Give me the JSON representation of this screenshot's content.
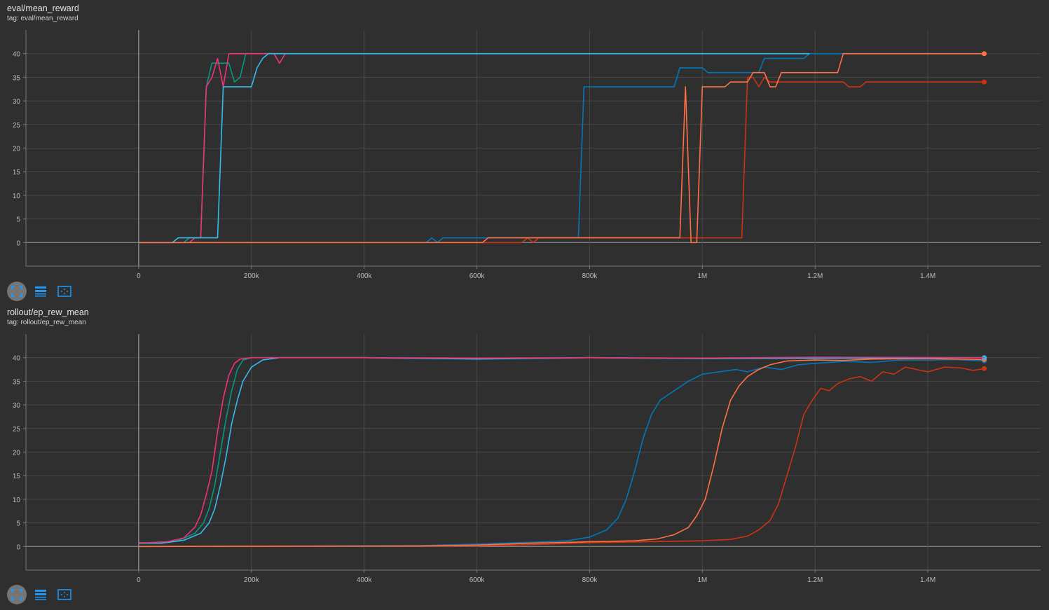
{
  "charts": [
    {
      "title": "eval/mean_reward",
      "tag": "tag: eval/mean_reward"
    },
    {
      "title": "rollout/ep_rew_mean",
      "tag": "tag: rollout/ep_rew_mean"
    }
  ],
  "toolbar": {
    "icons": [
      "fit-domain-icon",
      "toggle-log-scale-icon",
      "expand-chart-icon"
    ],
    "accent": "#2196f3"
  },
  "chart_data": [
    {
      "type": "line",
      "title": "eval/mean_reward",
      "xlim": [
        -200000,
        1600000
      ],
      "ylim": [
        -5,
        45
      ],
      "grid": true,
      "x_ticks": [
        {
          "v": 0,
          "label": "0"
        },
        {
          "v": 200000,
          "label": "200k"
        },
        {
          "v": 400000,
          "label": "400k"
        },
        {
          "v": 600000,
          "label": "600k"
        },
        {
          "v": 800000,
          "label": "800k"
        },
        {
          "v": 1000000,
          "label": "1M"
        },
        {
          "v": 1200000,
          "label": "1.2M"
        },
        {
          "v": 1400000,
          "label": "1.4M"
        }
      ],
      "y_ticks": [
        0,
        5,
        10,
        15,
        20,
        25,
        30,
        35,
        40
      ],
      "series": [
        {
          "color": "#009988",
          "points": [
            [
              0,
              0
            ],
            [
              80000,
              0
            ],
            [
              90000,
              1
            ],
            [
              110000,
              1
            ],
            [
              120000,
              33
            ],
            [
              130000,
              38
            ],
            [
              160000,
              38
            ],
            [
              170000,
              34
            ],
            [
              180000,
              35
            ],
            [
              190000,
              40
            ],
            [
              260000,
              40
            ]
          ]
        },
        {
          "color": "#ee3377",
          "points": [
            [
              0,
              0
            ],
            [
              90000,
              0
            ],
            [
              100000,
              1
            ],
            [
              110000,
              1
            ],
            [
              120000,
              33
            ],
            [
              130000,
              35
            ],
            [
              140000,
              39
            ],
            [
              150000,
              33
            ],
            [
              160000,
              40
            ],
            [
              240000,
              40
            ],
            [
              250000,
              38
            ],
            [
              260000,
              40
            ]
          ]
        },
        {
          "color": "#0077bb",
          "points": [
            [
              0,
              0
            ],
            [
              510000,
              0
            ],
            [
              520000,
              1
            ],
            [
              530000,
              0
            ],
            [
              540000,
              1
            ],
            [
              780000,
              1
            ],
            [
              790000,
              33
            ],
            [
              950000,
              33
            ],
            [
              960000,
              37
            ],
            [
              1000000,
              37
            ],
            [
              1010000,
              36
            ],
            [
              1100000,
              36
            ],
            [
              1110000,
              39
            ],
            [
              1180000,
              39
            ],
            [
              1190000,
              40
            ],
            [
              1500000,
              40
            ]
          ]
        },
        {
          "color": "#cc3311",
          "end_dot": true,
          "points": [
            [
              0,
              0
            ],
            [
              610000,
              0
            ],
            [
              680000,
              0
            ],
            [
              690000,
              1
            ],
            [
              700000,
              0
            ],
            [
              710000,
              1
            ],
            [
              1070000,
              1
            ],
            [
              1080000,
              35
            ],
            [
              1090000,
              35
            ],
            [
              1100000,
              33
            ],
            [
              1110000,
              35
            ],
            [
              1120000,
              34
            ],
            [
              1250000,
              34
            ],
            [
              1260000,
              33
            ],
            [
              1280000,
              33
            ],
            [
              1290000,
              34
            ],
            [
              1500000,
              34
            ]
          ]
        },
        {
          "color": "#33bbee",
          "points": [
            [
              0,
              0
            ],
            [
              60000,
              0
            ],
            [
              70000,
              1
            ],
            [
              140000,
              1
            ],
            [
              150000,
              33
            ],
            [
              200000,
              33
            ],
            [
              210000,
              37
            ],
            [
              220000,
              39
            ],
            [
              230000,
              40
            ],
            [
              1190000,
              40
            ]
          ]
        },
        {
          "color": "#ff7043",
          "end_dot": true,
          "points": [
            [
              0,
              0
            ],
            [
              610000,
              0
            ],
            [
              620000,
              1
            ],
            [
              960000,
              1
            ],
            [
              970000,
              33
            ],
            [
              980000,
              0
            ],
            [
              990000,
              0
            ],
            [
              1000000,
              33
            ],
            [
              1040000,
              33
            ],
            [
              1050000,
              34
            ],
            [
              1080000,
              34
            ],
            [
              1090000,
              36
            ],
            [
              1110000,
              36
            ],
            [
              1120000,
              33
            ],
            [
              1130000,
              33
            ],
            [
              1140000,
              36
            ],
            [
              1240000,
              36
            ],
            [
              1250000,
              40
            ],
            [
              1500000,
              40
            ]
          ]
        }
      ]
    },
    {
      "type": "line",
      "title": "rollout/ep_rew_mean",
      "xlim": [
        -200000,
        1600000
      ],
      "ylim": [
        -5,
        45
      ],
      "grid": true,
      "x_ticks": [
        {
          "v": 0,
          "label": "0"
        },
        {
          "v": 200000,
          "label": "200k"
        },
        {
          "v": 400000,
          "label": "400k"
        },
        {
          "v": 600000,
          "label": "600k"
        },
        {
          "v": 800000,
          "label": "800k"
        },
        {
          "v": 1000000,
          "label": "1M"
        },
        {
          "v": 1200000,
          "label": "1.2M"
        },
        {
          "v": 1400000,
          "label": "1.4M"
        }
      ],
      "y_ticks": [
        0,
        5,
        10,
        15,
        20,
        25,
        30,
        35,
        40
      ],
      "series": [
        {
          "color": "#0077bb",
          "end_dot": true,
          "points": [
            [
              0,
              0
            ],
            [
              300000,
              0.1
            ],
            [
              500000,
              0.2
            ],
            [
              600000,
              0.5
            ],
            [
              700000,
              0.9
            ],
            [
              760000,
              1.2
            ],
            [
              800000,
              2
            ],
            [
              830000,
              3.5
            ],
            [
              850000,
              6
            ],
            [
              865000,
              10
            ],
            [
              880000,
              16
            ],
            [
              895000,
              23
            ],
            [
              910000,
              28
            ],
            [
              925000,
              31
            ],
            [
              950000,
              33
            ],
            [
              975000,
              35
            ],
            [
              1000000,
              36.5
            ],
            [
              1030000,
              37
            ],
            [
              1060000,
              37.5
            ],
            [
              1080000,
              37
            ],
            [
              1110000,
              38
            ],
            [
              1140000,
              37.5
            ],
            [
              1170000,
              38.5
            ],
            [
              1200000,
              38.8
            ],
            [
              1250000,
              39.2
            ],
            [
              1300000,
              39
            ],
            [
              1350000,
              39.5
            ],
            [
              1400000,
              39.5
            ],
            [
              1450000,
              39.6
            ],
            [
              1500000,
              39.3
            ]
          ]
        },
        {
          "color": "#cc3311",
          "end_dot": true,
          "points": [
            [
              0,
              0
            ],
            [
              600000,
              0.1
            ],
            [
              700000,
              0.4
            ],
            [
              800000,
              0.8
            ],
            [
              900000,
              1
            ],
            [
              1000000,
              1.2
            ],
            [
              1050000,
              1.5
            ],
            [
              1080000,
              2.2
            ],
            [
              1100000,
              3.5
            ],
            [
              1120000,
              5.5
            ],
            [
              1135000,
              9
            ],
            [
              1150000,
              15
            ],
            [
              1165000,
              21
            ],
            [
              1180000,
              28
            ],
            [
              1195000,
              31
            ],
            [
              1210000,
              33.5
            ],
            [
              1225000,
              33
            ],
            [
              1240000,
              34.5
            ],
            [
              1260000,
              35.5
            ],
            [
              1280000,
              36
            ],
            [
              1300000,
              35
            ],
            [
              1320000,
              37
            ],
            [
              1340000,
              36.5
            ],
            [
              1360000,
              38
            ],
            [
              1380000,
              37.5
            ],
            [
              1400000,
              37
            ],
            [
              1430000,
              38
            ],
            [
              1460000,
              37.8
            ],
            [
              1480000,
              37.3
            ],
            [
              1500000,
              37.7
            ]
          ]
        },
        {
          "color": "#009988",
          "points": [
            [
              0,
              0.6
            ],
            [
              40000,
              0.7
            ],
            [
              70000,
              1.2
            ],
            [
              100000,
              2.8
            ],
            [
              115000,
              5
            ],
            [
              125000,
              8
            ],
            [
              135000,
              13
            ],
            [
              145000,
              20
            ],
            [
              155000,
              27
            ],
            [
              165000,
              33
            ],
            [
              175000,
              37.5
            ],
            [
              185000,
              39.5
            ],
            [
              200000,
              40
            ],
            [
              400000,
              40
            ],
            [
              600000,
              39.8
            ],
            [
              800000,
              40
            ],
            [
              1000000,
              39.8
            ],
            [
              1200000,
              40
            ],
            [
              1500000,
              40
            ]
          ]
        },
        {
          "color": "#ff7043",
          "end_dot": true,
          "points": [
            [
              0,
              0
            ],
            [
              500000,
              0.1
            ],
            [
              600000,
              0.3
            ],
            [
              700000,
              0.7
            ],
            [
              800000,
              1
            ],
            [
              880000,
              1.2
            ],
            [
              920000,
              1.6
            ],
            [
              950000,
              2.5
            ],
            [
              975000,
              4
            ],
            [
              990000,
              6.5
            ],
            [
              1005000,
              10
            ],
            [
              1020000,
              17
            ],
            [
              1035000,
              25
            ],
            [
              1050000,
              31
            ],
            [
              1065000,
              34
            ],
            [
              1080000,
              36
            ],
            [
              1100000,
              37.5
            ],
            [
              1120000,
              38.5
            ],
            [
              1150000,
              39.3
            ],
            [
              1200000,
              39.5
            ],
            [
              1250000,
              39.4
            ],
            [
              1300000,
              39.7
            ],
            [
              1400000,
              39.8
            ],
            [
              1500000,
              39.6
            ]
          ]
        },
        {
          "color": "#33bbee",
          "end_dot": true,
          "points": [
            [
              0,
              0.8
            ],
            [
              40000,
              0.7
            ],
            [
              80000,
              1.3
            ],
            [
              110000,
              2.8
            ],
            [
              125000,
              5
            ],
            [
              135000,
              8
            ],
            [
              145000,
              13
            ],
            [
              155000,
              19
            ],
            [
              165000,
              26
            ],
            [
              175000,
              31
            ],
            [
              185000,
              35
            ],
            [
              200000,
              38
            ],
            [
              220000,
              39.5
            ],
            [
              250000,
              40
            ],
            [
              400000,
              40
            ],
            [
              600000,
              39.7
            ],
            [
              800000,
              40
            ],
            [
              1000000,
              39.8
            ],
            [
              1200000,
              39.9
            ],
            [
              1500000,
              40
            ]
          ]
        },
        {
          "color": "#ee3377",
          "points": [
            [
              0,
              0.7
            ],
            [
              50000,
              1
            ],
            [
              80000,
              1.8
            ],
            [
              100000,
              4.1
            ],
            [
              110000,
              6.7
            ],
            [
              120000,
              11
            ],
            [
              130000,
              16
            ],
            [
              140000,
              24.4
            ],
            [
              150000,
              31.4
            ],
            [
              160000,
              36.3
            ],
            [
              170000,
              38.8
            ],
            [
              180000,
              39.7
            ],
            [
              200000,
              40
            ],
            [
              400000,
              40
            ],
            [
              600000,
              39.9
            ],
            [
              800000,
              40
            ],
            [
              1000000,
              39.9
            ],
            [
              1200000,
              40.1
            ],
            [
              1500000,
              40
            ]
          ]
        }
      ]
    }
  ]
}
